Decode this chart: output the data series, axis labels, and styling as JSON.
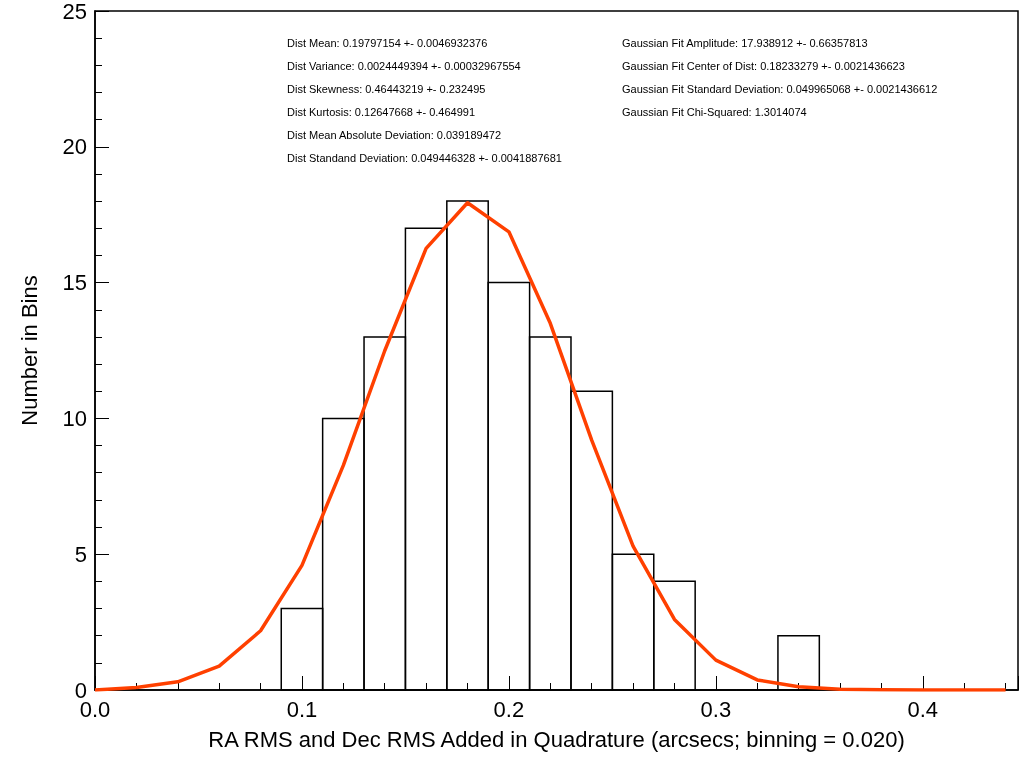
{
  "chart_data": {
    "type": "histogram",
    "xlabel": "RA RMS and Dec RMS Added in Quadrature (arcsecs; binning = 0.020)",
    "ylabel": "Number in Bins",
    "bins": [
      0.09,
      0.11,
      0.13,
      0.15,
      0.17,
      0.19,
      0.21,
      0.23,
      0.25,
      0.27,
      0.29,
      0.31,
      0.33,
      0.35
    ],
    "values": [
      3,
      10,
      13,
      17,
      18,
      15,
      13,
      11,
      5,
      4,
      0,
      0,
      2
    ],
    "color": "#000000",
    "series": [
      {
        "type": "line",
        "color": "#ff4000",
        "x": [
          0,
          0.02,
          0.04,
          0.06,
          0.08,
          0.1,
          0.12,
          0.14,
          0.16,
          0.18,
          0.2,
          0.22,
          0.24,
          0.26,
          0.28,
          0.3,
          0.32,
          0.34,
          0.36,
          0.38,
          0.4,
          0.42,
          0.44
        ],
        "values": [
          0,
          0.09,
          0.3,
          0.88,
          2.18,
          4.59,
          8.27,
          12.49,
          16.26,
          17.94,
          16.87,
          13.5,
          9.2,
          5.3,
          2.6,
          1.1,
          0.37,
          0.12,
          0.03,
          0.01,
          0,
          0,
          0
        ]
      }
    ],
    "xlim": [
      0,
      0.446
    ],
    "ylim": [
      0,
      25
    ],
    "xticks": [
      {
        "value": 0,
        "label": "0.0"
      },
      0.1,
      0.2,
      0.3,
      0.4
    ],
    "yticks": [
      0,
      5,
      10,
      15,
      20,
      25
    ],
    "grid": false,
    "marker": "none",
    "line_style": "solid",
    "annotations": [
      "Dist Mean: 0.19797154 +- 0.0046932376",
      "Dist Variance: 0.0024449394 +- 0.00032967554",
      "Dist Skewness: 0.46443219 +- 0.232495",
      "Dist Kurtosis: 0.12647668 +- 0.464991",
      "Dist Mean Absolute Deviation: 0.039189472",
      "Dist Standand Deviation: 0.049446328 +- 0.0041887681",
      "Gaussian Fit Amplitude: 17.938912 +- 0.66357813",
      "Gaussian Fit Center of Dist: 0.18233279 +- 0.0021436623",
      "Gaussian Fit Standard Deviation: 0.049965068 +- 0.0021436612",
      "Gaussian Fit Chi-Squared: 1.3014074"
    ]
  }
}
